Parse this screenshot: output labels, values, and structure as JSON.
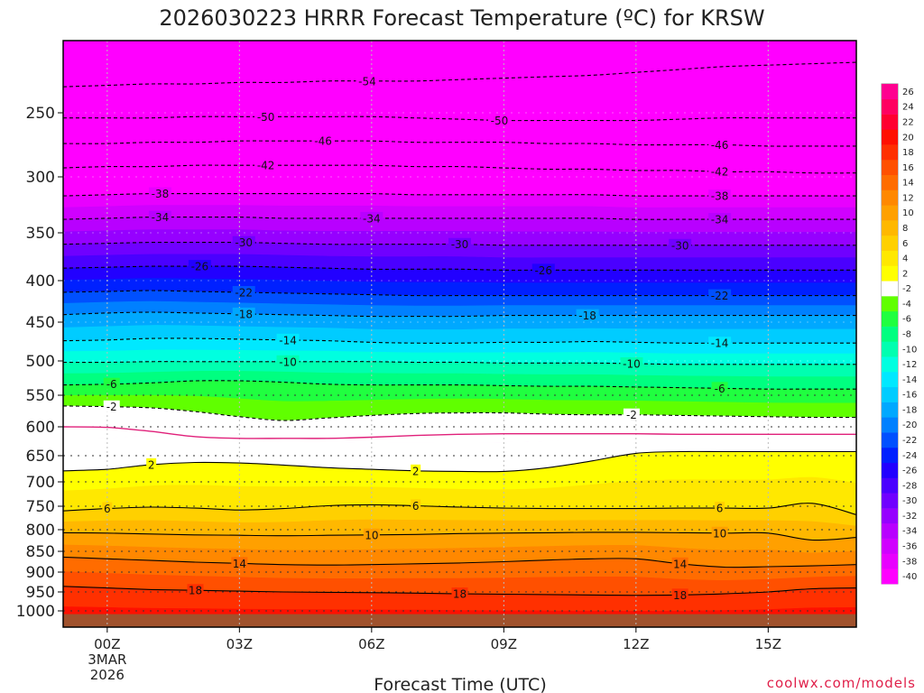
{
  "chart_data": {
    "type": "heatmap",
    "title": "2026030223 HRRR Forecast Temperature (ºC) for KRSW",
    "xlabel": "Forecast Time (UTC)",
    "ylabel": "",
    "credit": "coolwx.com/models",
    "x_range_hours": [
      -1.0,
      17.0
    ],
    "y_range_hPa": [
      1050,
      200
    ],
    "x_ticks": [
      {
        "hour": 0,
        "label": "00Z",
        "sublabel1": "3MAR",
        "sublabel2": "2026"
      },
      {
        "hour": 3,
        "label": "03Z"
      },
      {
        "hour": 6,
        "label": "06Z"
      },
      {
        "hour": 9,
        "label": "09Z"
      },
      {
        "hour": 12,
        "label": "12Z"
      },
      {
        "hour": 15,
        "label": "15Z"
      }
    ],
    "y_ticks": [
      {
        "p": 250,
        "label": "250"
      },
      {
        "p": 300,
        "label": "300"
      },
      {
        "p": 350,
        "label": "350"
      },
      {
        "p": 400,
        "label": "400"
      },
      {
        "p": 450,
        "label": "450"
      },
      {
        "p": 500,
        "label": "500"
      },
      {
        "p": 550,
        "label": "550"
      },
      {
        "p": 600,
        "label": "600"
      },
      {
        "p": 650,
        "label": "650"
      },
      {
        "p": 700,
        "label": "700"
      },
      {
        "p": 750,
        "label": "750"
      },
      {
        "p": 800,
        "label": "800"
      },
      {
        "p": 850,
        "label": "850"
      },
      {
        "p": 900,
        "label": "900"
      },
      {
        "p": 950,
        "label": "950"
      },
      {
        "p": 1000,
        "label": "1000"
      }
    ],
    "colorbar": [
      {
        "v": -40,
        "label": "-40",
        "color": "#ff00ff"
      },
      {
        "v": -38,
        "label": "-38",
        "color": "#e800ff"
      },
      {
        "v": -36,
        "label": "-36",
        "color": "#d000ff"
      },
      {
        "v": -34,
        "label": "-34",
        "color": "#b800ff"
      },
      {
        "v": -32,
        "label": "-32",
        "color": "#9600ff"
      },
      {
        "v": -30,
        "label": "-30",
        "color": "#7000ff"
      },
      {
        "v": -28,
        "label": "-28",
        "color": "#4a00ff"
      },
      {
        "v": -26,
        "label": "-26",
        "color": "#2200ff"
      },
      {
        "v": -24,
        "label": "-24",
        "color": "#0020ff"
      },
      {
        "v": -22,
        "label": "-22",
        "color": "#0050ff"
      },
      {
        "v": -20,
        "label": "-20",
        "color": "#0080ff"
      },
      {
        "v": -18,
        "label": "-18",
        "color": "#00a8ff"
      },
      {
        "v": -16,
        "label": "-16",
        "color": "#00ccff"
      },
      {
        "v": -14,
        "label": "-14",
        "color": "#00e8ff"
      },
      {
        "v": -12,
        "label": "-12",
        "color": "#00ffe0"
      },
      {
        "v": -10,
        "label": "-10",
        "color": "#00ffb0"
      },
      {
        "v": -8,
        "label": "-8",
        "color": "#00ff80"
      },
      {
        "v": -6,
        "label": "-6",
        "color": "#20ff40"
      },
      {
        "v": -4,
        "label": "-4",
        "color": "#60ff00"
      },
      {
        "v": -2,
        "label": "-2",
        "color": "#ffffff"
      },
      {
        "v": 2,
        "label": "2",
        "color": "#ffff00"
      },
      {
        "v": 4,
        "label": "4",
        "color": "#ffe800"
      },
      {
        "v": 6,
        "label": "6",
        "color": "#ffd000"
      },
      {
        "v": 8,
        "label": "8",
        "color": "#ffb800"
      },
      {
        "v": 10,
        "label": "10",
        "color": "#ffa000"
      },
      {
        "v": 12,
        "label": "12",
        "color": "#ff8800"
      },
      {
        "v": 14,
        "label": "14",
        "color": "#ff6c00"
      },
      {
        "v": 16,
        "label": "16",
        "color": "#ff5000"
      },
      {
        "v": 18,
        "label": "18",
        "color": "#ff3000"
      },
      {
        "v": 20,
        "label": "20",
        "color": "#ff1000"
      },
      {
        "v": 22,
        "label": "22",
        "color": "#ff0030"
      },
      {
        "v": 24,
        "label": "24",
        "color": "#ff0060"
      },
      {
        "v": 26,
        "label": "26",
        "color": "#ff0090"
      }
    ],
    "ground_color": "#a0522d",
    "frost_contour_color": "#e0207a",
    "contours": [
      {
        "value": -54,
        "label": "-54",
        "p": [
          232,
          231,
          230,
          230,
          229,
          229,
          228,
          228,
          228,
          227,
          226,
          225,
          224,
          222,
          220,
          218,
          217,
          216,
          215
        ]
      },
      {
        "value": -50,
        "label": "-50",
        "p": [
          254,
          254,
          254,
          253,
          253,
          253,
          253,
          253,
          254,
          255,
          256,
          256,
          256,
          256,
          255,
          254,
          254,
          254,
          254
        ]
      },
      {
        "value": -46,
        "label": "-46",
        "p": [
          274,
          274,
          273,
          273,
          272,
          272,
          272,
          272,
          273,
          273,
          273,
          274,
          274,
          275,
          275,
          275,
          276,
          276,
          276
        ]
      },
      {
        "value": -42,
        "label": "-42",
        "p": [
          293,
          292,
          292,
          291,
          291,
          291,
          291,
          291,
          292,
          292,
          293,
          294,
          294,
          295,
          295,
          296,
          296,
          297,
          297
        ]
      },
      {
        "value": -38,
        "label": "-38",
        "p": [
          317,
          316,
          315,
          315,
          315,
          315,
          315,
          315,
          316,
          316,
          316,
          316,
          316,
          317,
          317,
          317,
          317,
          317,
          317
        ]
      },
      {
        "value": -34,
        "label": "-34",
        "p": [
          338,
          337,
          336,
          336,
          336,
          337,
          337,
          337,
          337,
          337,
          337,
          337,
          337,
          338,
          338,
          338,
          338,
          338,
          338
        ]
      },
      {
        "value": -30,
        "label": "-30",
        "p": [
          362,
          361,
          360,
          360,
          360,
          361,
          362,
          362,
          362,
          362,
          363,
          363,
          363,
          363,
          363,
          363,
          363,
          363,
          363
        ]
      },
      {
        "value": -26,
        "label": "-26",
        "p": [
          387,
          386,
          385,
          385,
          385,
          386,
          387,
          388,
          388,
          388,
          389,
          389,
          389,
          389,
          389,
          389,
          389,
          389,
          389
        ]
      },
      {
        "value": -22,
        "label": "-22",
        "p": [
          414,
          413,
          412,
          413,
          414,
          415,
          416,
          417,
          418,
          418,
          418,
          418,
          418,
          418,
          418,
          418,
          418,
          418,
          418
        ]
      },
      {
        "value": -18,
        "label": "-18",
        "p": [
          441,
          439,
          438,
          439,
          440,
          441,
          442,
          443,
          443,
          443,
          442,
          442,
          442,
          442,
          442,
          442,
          442,
          442,
          442
        ]
      },
      {
        "value": -14,
        "label": "-14",
        "p": [
          474,
          473,
          471,
          471,
          472,
          473,
          474,
          476,
          477,
          477,
          476,
          476,
          475,
          476,
          477,
          477,
          477,
          477,
          477
        ]
      },
      {
        "value": -10,
        "label": "-10",
        "p": [
          502,
          502,
          501,
          501,
          501,
          501,
          501,
          501,
          502,
          502,
          503,
          503,
          503,
          504,
          505,
          505,
          505,
          505,
          505
        ]
      },
      {
        "value": -6,
        "label": "-6",
        "p": [
          535,
          534,
          532,
          529,
          529,
          531,
          534,
          535,
          535,
          535,
          536,
          537,
          537,
          538,
          539,
          540,
          541,
          541,
          541
        ]
      },
      {
        "value": -2,
        "label": "-2",
        "p": [
          567,
          568,
          570,
          576,
          584,
          590,
          586,
          582,
          579,
          578,
          578,
          580,
          581,
          581,
          582,
          583,
          584,
          585,
          585
        ]
      },
      {
        "value": 2,
        "label": "2",
        "p": [
          679,
          676,
          667,
          663,
          664,
          668,
          673,
          676,
          679,
          680,
          680,
          673,
          660,
          646,
          643,
          643,
          643,
          643,
          643
        ]
      },
      {
        "value": 6,
        "label": "6",
        "p": [
          760,
          755,
          752,
          754,
          758,
          755,
          749,
          747,
          749,
          752,
          754,
          755,
          755,
          755,
          754,
          754,
          754,
          744,
          768
        ]
      },
      {
        "value": 10,
        "label": "10",
        "p": [
          807,
          808,
          810,
          812,
          813,
          814,
          813,
          812,
          811,
          809,
          808,
          807,
          806,
          806,
          807,
          808,
          808,
          824,
          818
        ]
      },
      {
        "value": 14,
        "label": "14",
        "p": [
          864,
          868,
          872,
          876,
          879,
          882,
          883,
          882,
          880,
          878,
          875,
          871,
          868,
          868,
          880,
          888,
          887,
          885,
          882
        ]
      },
      {
        "value": 18,
        "label": "18",
        "p": [
          936,
          940,
          944,
          946,
          948,
          950,
          951,
          952,
          953,
          955,
          956,
          957,
          958,
          959,
          958,
          955,
          950,
          942,
          940
        ]
      }
    ],
    "frost_contour": {
      "value": 0,
      "p": [
        600,
        601,
        608,
        617,
        620,
        620,
        620,
        618,
        615,
        613,
        612,
        612,
        612,
        612,
        613,
        613,
        613,
        613,
        613
      ]
    },
    "contour_labels": [
      {
        "value_label": "-54",
        "hour": 5.9,
        "level": -54
      },
      {
        "value_label": "-50",
        "hour": 3.6,
        "level": -50
      },
      {
        "value_label": "-50",
        "hour": 8.9,
        "level": -50
      },
      {
        "value_label": "-46",
        "hour": 4.9,
        "level": -46
      },
      {
        "value_label": "-46",
        "hour": 13.9,
        "level": -46
      },
      {
        "value_label": "-42",
        "hour": 3.6,
        "level": -42
      },
      {
        "value_label": "-42",
        "hour": 13.9,
        "level": -42
      },
      {
        "value_label": "-38",
        "hour": 1.2,
        "level": -38
      },
      {
        "value_label": "-38",
        "hour": 13.9,
        "level": -38
      },
      {
        "value_label": "-34",
        "hour": 1.2,
        "level": -34
      },
      {
        "value_label": "-34",
        "hour": 6.0,
        "level": -34
      },
      {
        "value_label": "-34",
        "hour": 13.9,
        "level": -34
      },
      {
        "value_label": "-30",
        "hour": 3.1,
        "level": -30
      },
      {
        "value_label": "-30",
        "hour": 8.0,
        "level": -30
      },
      {
        "value_label": "-30",
        "hour": 13.0,
        "level": -30
      },
      {
        "value_label": "-26",
        "hour": 2.1,
        "level": -26
      },
      {
        "value_label": "-26",
        "hour": 9.9,
        "level": -26
      },
      {
        "value_label": "-22",
        "hour": 3.1,
        "level": -22
      },
      {
        "value_label": "-22",
        "hour": 13.9,
        "level": -22
      },
      {
        "value_label": "-18",
        "hour": 3.1,
        "level": -18
      },
      {
        "value_label": "-18",
        "hour": 10.9,
        "level": -18
      },
      {
        "value_label": "-14",
        "hour": 4.1,
        "level": -14
      },
      {
        "value_label": "-14",
        "hour": 13.9,
        "level": -14
      },
      {
        "value_label": "-10",
        "hour": 4.1,
        "level": -10
      },
      {
        "value_label": "-10",
        "hour": 11.9,
        "level": -10
      },
      {
        "value_label": "-6",
        "hour": 0.1,
        "level": -6
      },
      {
        "value_label": "-6",
        "hour": 13.9,
        "level": -6
      },
      {
        "value_label": "-2",
        "hour": 0.1,
        "level": -2
      },
      {
        "value_label": "-2",
        "hour": 11.9,
        "level": -2
      },
      {
        "value_label": "2",
        "hour": 1.0,
        "level": 2
      },
      {
        "value_label": "2",
        "hour": 7.0,
        "level": 2
      },
      {
        "value_label": "6",
        "hour": 0.0,
        "level": 6
      },
      {
        "value_label": "6",
        "hour": 7.0,
        "level": 6
      },
      {
        "value_label": "6",
        "hour": 13.9,
        "level": 6
      },
      {
        "value_label": "10",
        "hour": 6.0,
        "level": 10
      },
      {
        "value_label": "10",
        "hour": 13.9,
        "level": 10
      },
      {
        "value_label": "14",
        "hour": 3.0,
        "level": 14
      },
      {
        "value_label": "14",
        "hour": 13.0,
        "level": 14
      },
      {
        "value_label": "18",
        "hour": 2.0,
        "level": 18
      },
      {
        "value_label": "18",
        "hour": 8.0,
        "level": 18
      },
      {
        "value_label": "18",
        "hour": 13.0,
        "level": 18
      }
    ]
  }
}
